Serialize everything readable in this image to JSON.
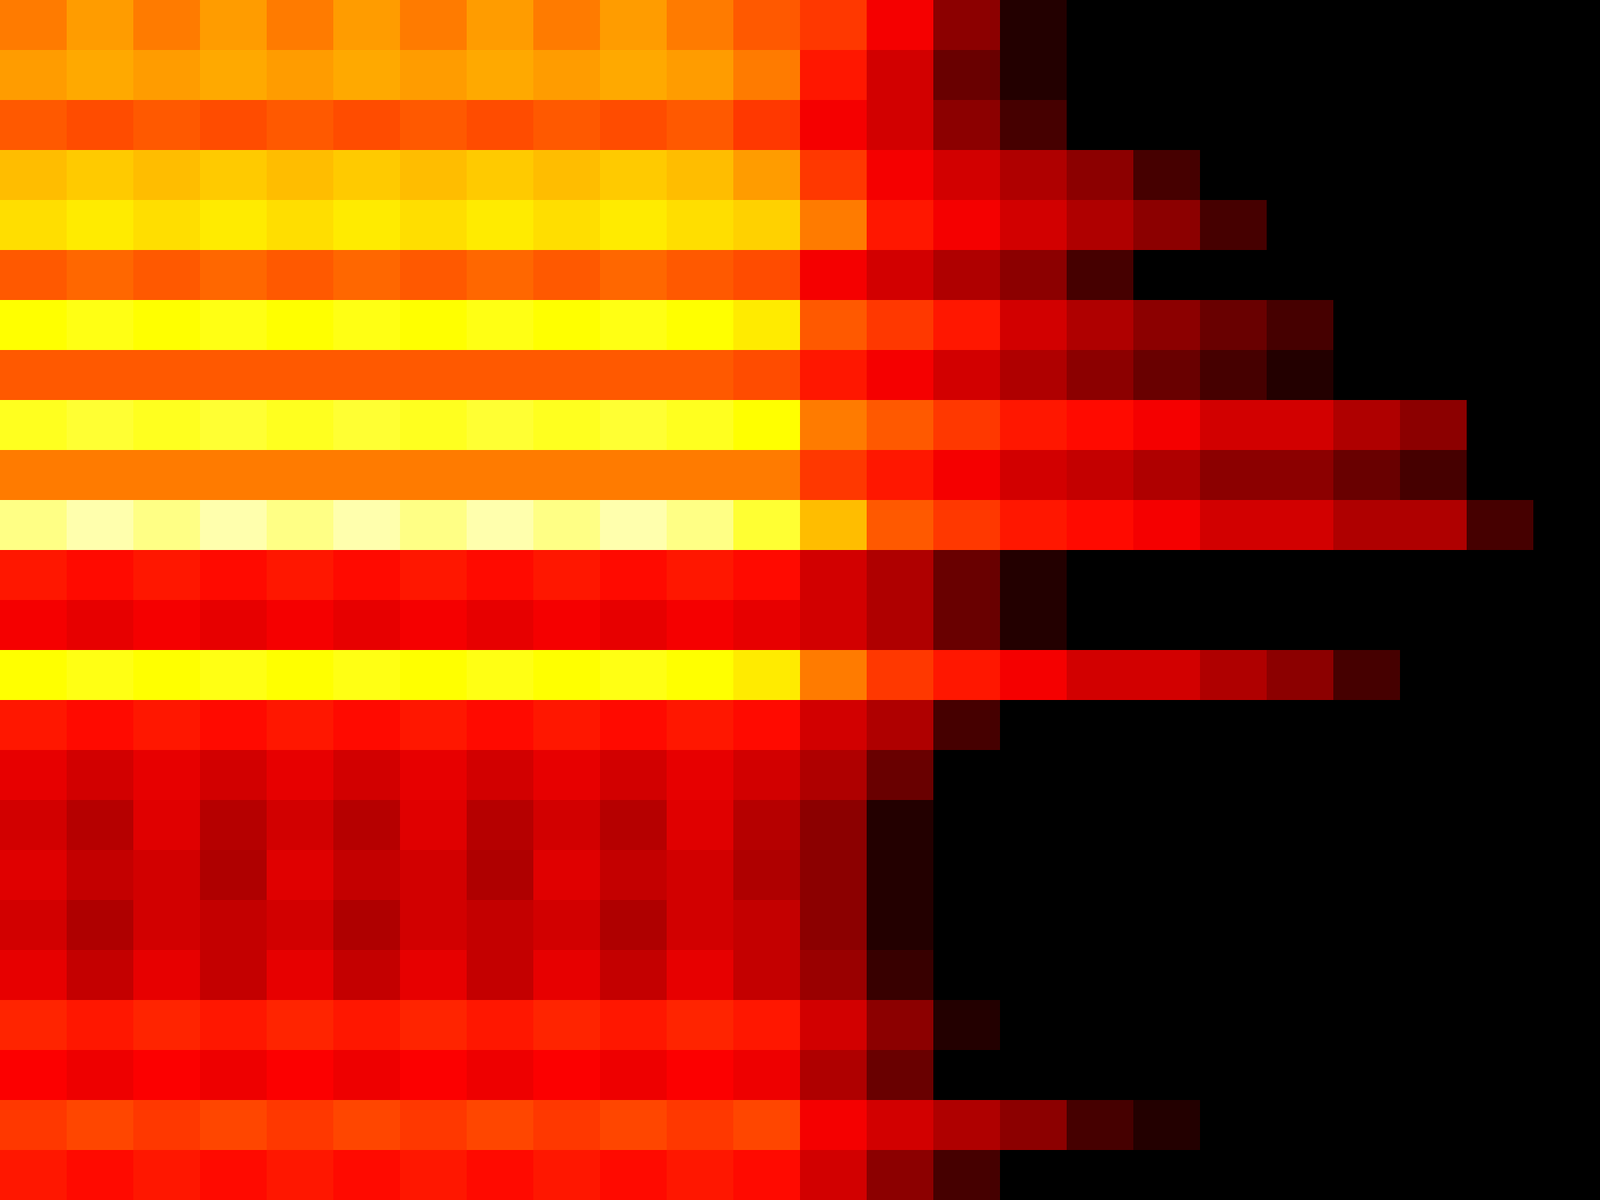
{
  "chart_data": {
    "type": "heatmap",
    "tick_labels": false,
    "value_range": [
      0,
      1
    ],
    "cells": [
      [
        0.55,
        0.6,
        0.55,
        0.6,
        0.55,
        0.6,
        0.55,
        0.6,
        0.55,
        0.6,
        0.55,
        0.5,
        0.45,
        0.35,
        0.2,
        0.05,
        0,
        0,
        0,
        0,
        0,
        0,
        0,
        0
      ],
      [
        0.6,
        0.62,
        0.6,
        0.62,
        0.6,
        0.62,
        0.6,
        0.62,
        0.6,
        0.62,
        0.6,
        0.55,
        0.4,
        0.3,
        0.15,
        0.05,
        0,
        0,
        0,
        0,
        0,
        0,
        0,
        0
      ],
      [
        0.5,
        0.48,
        0.5,
        0.48,
        0.5,
        0.48,
        0.5,
        0.48,
        0.5,
        0.48,
        0.5,
        0.45,
        0.35,
        0.3,
        0.2,
        0.1,
        0,
        0,
        0,
        0,
        0,
        0,
        0,
        0
      ],
      [
        0.65,
        0.67,
        0.65,
        0.67,
        0.65,
        0.67,
        0.65,
        0.67,
        0.65,
        0.67,
        0.65,
        0.6,
        0.45,
        0.35,
        0.3,
        0.25,
        0.2,
        0.1,
        0,
        0,
        0,
        0,
        0,
        0
      ],
      [
        0.7,
        0.72,
        0.7,
        0.72,
        0.7,
        0.72,
        0.7,
        0.72,
        0.7,
        0.72,
        0.7,
        0.68,
        0.55,
        0.4,
        0.35,
        0.3,
        0.25,
        0.2,
        0.1,
        0,
        0,
        0,
        0,
        0
      ],
      [
        0.5,
        0.52,
        0.5,
        0.52,
        0.5,
        0.52,
        0.5,
        0.52,
        0.5,
        0.52,
        0.5,
        0.48,
        0.35,
        0.3,
        0.25,
        0.2,
        0.1,
        0,
        0,
        0,
        0,
        0,
        0,
        0
      ],
      [
        0.75,
        0.77,
        0.75,
        0.77,
        0.75,
        0.77,
        0.75,
        0.77,
        0.75,
        0.77,
        0.75,
        0.72,
        0.5,
        0.45,
        0.4,
        0.3,
        0.25,
        0.2,
        0.15,
        0.1,
        0,
        0,
        0,
        0
      ],
      [
        0.5,
        0.5,
        0.5,
        0.5,
        0.5,
        0.5,
        0.5,
        0.5,
        0.5,
        0.5,
        0.5,
        0.48,
        0.4,
        0.35,
        0.3,
        0.25,
        0.2,
        0.15,
        0.1,
        0.05,
        0,
        0,
        0,
        0
      ],
      [
        0.78,
        0.8,
        0.78,
        0.8,
        0.78,
        0.8,
        0.78,
        0.8,
        0.78,
        0.8,
        0.78,
        0.75,
        0.55,
        0.5,
        0.45,
        0.4,
        0.38,
        0.35,
        0.3,
        0.3,
        0.25,
        0.2,
        0,
        0
      ],
      [
        0.55,
        0.55,
        0.55,
        0.55,
        0.55,
        0.55,
        0.55,
        0.55,
        0.55,
        0.55,
        0.55,
        0.55,
        0.45,
        0.4,
        0.35,
        0.3,
        0.28,
        0.25,
        0.2,
        0.2,
        0.15,
        0.1,
        0,
        0
      ],
      [
        0.88,
        0.92,
        0.88,
        0.92,
        0.88,
        0.92,
        0.88,
        0.92,
        0.88,
        0.92,
        0.88,
        0.8,
        0.65,
        0.5,
        0.45,
        0.4,
        0.38,
        0.35,
        0.3,
        0.3,
        0.25,
        0.25,
        0.1,
        0
      ],
      [
        0.4,
        0.38,
        0.4,
        0.38,
        0.4,
        0.38,
        0.4,
        0.38,
        0.4,
        0.38,
        0.4,
        0.38,
        0.3,
        0.25,
        0.15,
        0.05,
        0,
        0,
        0,
        0,
        0,
        0,
        0,
        0
      ],
      [
        0.35,
        0.33,
        0.35,
        0.33,
        0.35,
        0.33,
        0.35,
        0.33,
        0.35,
        0.33,
        0.35,
        0.33,
        0.3,
        0.25,
        0.15,
        0.05,
        0,
        0,
        0,
        0,
        0,
        0,
        0,
        0
      ],
      [
        0.75,
        0.77,
        0.75,
        0.77,
        0.75,
        0.77,
        0.75,
        0.77,
        0.75,
        0.77,
        0.75,
        0.72,
        0.55,
        0.45,
        0.4,
        0.35,
        0.3,
        0.3,
        0.25,
        0.2,
        0.1,
        0,
        0,
        0
      ],
      [
        0.4,
        0.38,
        0.4,
        0.38,
        0.4,
        0.38,
        0.4,
        0.38,
        0.4,
        0.38,
        0.4,
        0.38,
        0.3,
        0.25,
        0.1,
        0,
        0,
        0,
        0,
        0,
        0,
        0,
        0,
        0
      ],
      [
        0.33,
        0.3,
        0.33,
        0.3,
        0.33,
        0.3,
        0.33,
        0.3,
        0.33,
        0.3,
        0.33,
        0.3,
        0.25,
        0.15,
        0,
        0,
        0,
        0,
        0,
        0,
        0,
        0,
        0,
        0
      ],
      [
        0.3,
        0.26,
        0.32,
        0.26,
        0.3,
        0.26,
        0.32,
        0.26,
        0.3,
        0.26,
        0.32,
        0.26,
        0.2,
        0.05,
        0,
        0,
        0,
        0,
        0,
        0,
        0,
        0,
        0,
        0
      ],
      [
        0.32,
        0.28,
        0.3,
        0.25,
        0.32,
        0.28,
        0.3,
        0.25,
        0.32,
        0.28,
        0.3,
        0.25,
        0.2,
        0.05,
        0,
        0,
        0,
        0,
        0,
        0,
        0,
        0,
        0,
        0
      ],
      [
        0.3,
        0.25,
        0.3,
        0.28,
        0.3,
        0.25,
        0.3,
        0.28,
        0.3,
        0.25,
        0.3,
        0.28,
        0.2,
        0.05,
        0,
        0,
        0,
        0,
        0,
        0,
        0,
        0,
        0,
        0
      ],
      [
        0.33,
        0.28,
        0.33,
        0.28,
        0.33,
        0.28,
        0.33,
        0.28,
        0.33,
        0.28,
        0.33,
        0.28,
        0.22,
        0.08,
        0,
        0,
        0,
        0,
        0,
        0,
        0,
        0,
        0,
        0
      ],
      [
        0.42,
        0.4,
        0.42,
        0.4,
        0.42,
        0.4,
        0.42,
        0.4,
        0.42,
        0.4,
        0.42,
        0.4,
        0.3,
        0.2,
        0.05,
        0,
        0,
        0,
        0,
        0,
        0,
        0,
        0,
        0
      ],
      [
        0.36,
        0.34,
        0.36,
        0.34,
        0.36,
        0.34,
        0.36,
        0.34,
        0.36,
        0.34,
        0.36,
        0.34,
        0.25,
        0.15,
        0,
        0,
        0,
        0,
        0,
        0,
        0,
        0,
        0,
        0
      ],
      [
        0.45,
        0.47,
        0.45,
        0.47,
        0.45,
        0.47,
        0.45,
        0.47,
        0.45,
        0.47,
        0.45,
        0.47,
        0.35,
        0.3,
        0.25,
        0.2,
        0.1,
        0.05,
        0,
        0,
        0,
        0,
        0,
        0
      ],
      [
        0.4,
        0.38,
        0.4,
        0.38,
        0.4,
        0.38,
        0.4,
        0.38,
        0.4,
        0.38,
        0.4,
        0.38,
        0.3,
        0.2,
        0.1,
        0,
        0,
        0,
        0,
        0,
        0,
        0,
        0,
        0
      ]
    ]
  }
}
